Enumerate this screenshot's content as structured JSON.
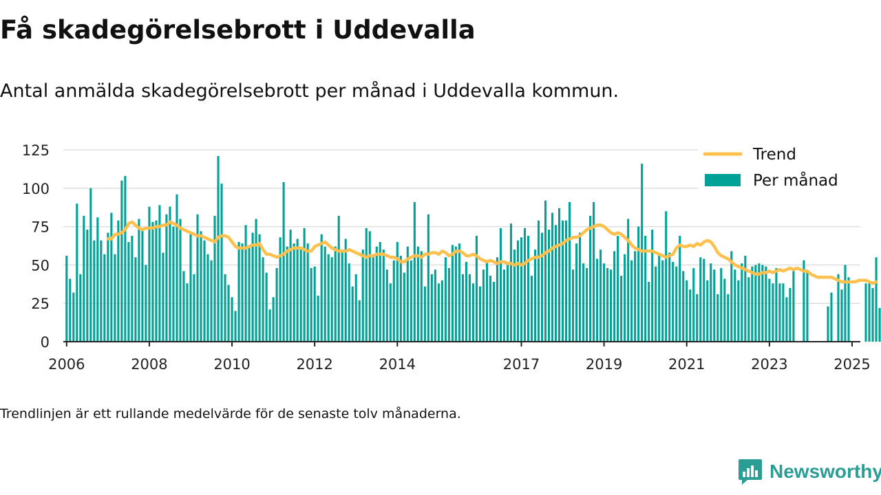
{
  "title": "Få skadegörelsebrott i Uddevalla",
  "subtitle": "Antal anmälda skadegörelsebrott per månad i Uddevalla kommun.",
  "note": "Trendlinjen är ett rullande medelvärde för de senaste tolv månaderna.",
  "brand": {
    "name": "Newsworthy",
    "icon": "newsworthy-logo-icon"
  },
  "colors": {
    "bar": "#00a197",
    "trend": "#ffc04d",
    "grid": "#dddddd",
    "axis": "#222222",
    "brand": "#2a9d95"
  },
  "chart_data": {
    "type": "bar",
    "x_unit": "year",
    "xlim": [
      2005.92,
      2025.2
    ],
    "ylim": [
      0,
      125
    ],
    "yticks": [
      0,
      25,
      50,
      75,
      100,
      125
    ],
    "xticks": [
      2006,
      2008,
      2010,
      2012,
      2014,
      2017,
      2019,
      2021,
      2023,
      2025
    ],
    "grid": true,
    "legend": {
      "position": "top-right",
      "items": [
        {
          "label": "Trend",
          "kind": "line"
        },
        {
          "label": "Per månad",
          "kind": "bar"
        }
      ]
    },
    "bars": {
      "name": "Per månad",
      "start": 2006.0,
      "step_months": 1,
      "values": [
        56,
        41,
        32,
        90,
        44,
        82,
        73,
        100,
        66,
        81,
        66,
        57,
        71,
        84,
        57,
        79,
        105,
        108,
        65,
        69,
        55,
        80,
        73,
        50,
        88,
        78,
        79,
        89,
        58,
        83,
        88,
        75,
        96,
        80,
        46,
        38,
        70,
        44,
        83,
        72,
        66,
        57,
        53,
        82,
        121,
        103,
        44,
        37,
        29,
        20,
        65,
        64,
        76,
        62,
        71,
        80,
        70,
        55,
        45,
        21,
        29,
        48,
        68,
        104,
        62,
        73,
        64,
        67,
        60,
        74,
        64,
        48,
        49,
        30,
        70,
        62,
        57,
        55,
        62,
        82,
        60,
        67,
        51,
        36,
        44,
        27,
        60,
        74,
        72,
        55,
        62,
        65,
        60,
        47,
        38,
        53,
        65,
        56,
        45,
        62,
        53,
        91,
        62,
        59,
        36,
        83,
        44,
        47,
        38,
        40,
        55,
        48,
        63,
        62,
        64,
        44,
        52,
        44,
        38,
        69,
        36,
        47,
        52,
        43,
        39,
        55,
        74,
        47,
        50,
        77,
        60,
        66,
        68,
        74,
        69,
        43,
        60,
        79,
        71,
        92,
        73,
        84,
        76,
        87,
        79,
        79,
        91,
        47,
        64,
        71,
        51,
        48,
        82,
        91,
        54,
        60,
        51,
        48,
        47,
        59,
        69,
        43,
        57,
        80,
        53,
        59,
        75,
        116,
        69,
        39,
        73,
        49,
        57,
        53,
        85,
        58,
        52,
        49,
        69,
        46,
        40,
        34,
        48,
        31,
        55,
        54,
        40,
        51,
        47,
        31,
        48,
        41,
        31,
        59,
        47,
        40,
        51,
        56,
        42,
        49,
        50,
        51,
        50,
        49,
        41,
        38,
        48,
        38,
        38,
        29,
        35,
        46,
        null,
        null,
        53,
        45,
        null,
        null,
        null,
        null,
        null,
        23,
        32,
        null,
        44,
        34,
        50,
        42,
        null,
        null,
        null,
        null,
        38,
        38,
        35,
        55,
        22
      ]
    },
    "trend": {
      "name": "Trend",
      "start": 2007.0,
      "step_months": 1,
      "values": [
        67,
        67,
        70,
        70,
        71,
        73,
        77,
        78,
        76,
        74,
        73,
        74,
        74,
        74,
        75,
        75,
        76,
        76,
        78,
        77,
        76,
        74,
        73,
        72,
        71,
        70,
        69,
        69,
        68,
        67,
        66,
        65,
        68,
        69,
        69,
        68,
        65,
        62,
        61,
        61,
        61,
        62,
        63,
        63,
        64,
        60,
        57,
        57,
        56,
        55,
        56,
        57,
        59,
        60,
        61,
        61,
        61,
        60,
        59,
        59,
        62,
        63,
        64,
        65,
        63,
        61,
        60,
        59,
        59,
        59,
        60,
        59,
        58,
        57,
        56,
        55,
        56,
        56,
        57,
        57,
        57,
        56,
        55,
        55,
        54,
        52,
        52,
        54,
        55,
        56,
        56,
        55,
        57,
        57,
        58,
        58,
        57,
        59,
        58,
        56,
        57,
        59,
        59,
        58,
        56,
        56,
        57,
        56,
        54,
        53,
        52,
        53,
        52,
        51,
        52,
        52,
        51,
        51,
        50,
        51,
        50,
        51,
        53,
        54,
        55,
        55,
        56,
        58,
        59,
        61,
        62,
        63,
        64,
        66,
        67,
        68,
        68,
        69,
        71,
        73,
        74,
        75,
        76,
        76,
        75,
        73,
        71,
        70,
        71,
        70,
        68,
        66,
        63,
        61,
        60,
        59,
        59,
        59,
        59,
        58,
        57,
        56,
        55,
        56,
        57,
        61,
        63,
        62,
        62,
        63,
        62,
        64,
        63,
        65,
        66,
        65,
        62,
        58,
        56,
        55,
        54,
        52,
        50,
        49,
        48,
        47,
        46,
        45,
        44,
        44,
        45,
        45,
        46,
        45,
        46,
        47,
        46,
        47,
        48,
        47,
        48,
        47,
        46,
        46,
        44,
        43,
        42,
        42,
        42,
        42,
        42,
        41,
        40,
        39,
        39,
        39,
        39,
        39,
        40,
        40,
        40,
        39,
        38,
        39
      ]
    }
  }
}
